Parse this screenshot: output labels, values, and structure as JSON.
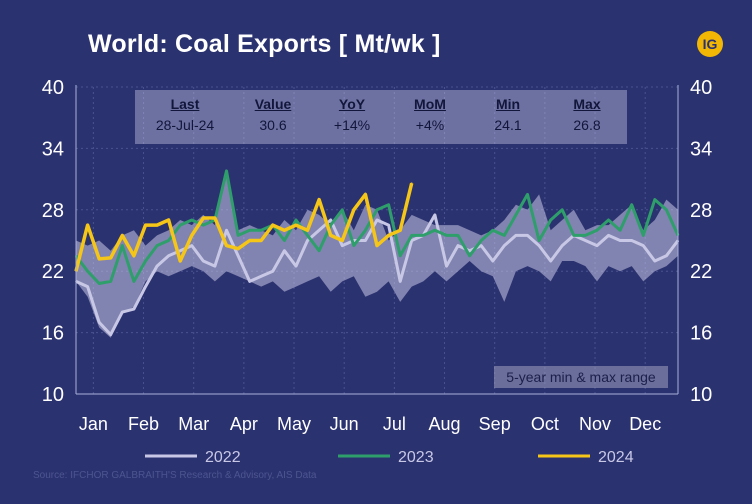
{
  "title": "World: Coal Exports [ Mt/wk ]",
  "logo_text": "IG",
  "stats": {
    "headers": [
      "Last",
      "Value",
      "YoY",
      "MoM",
      "Min",
      "Max"
    ],
    "values": [
      "28-Jul-24",
      "30.6",
      "+14%",
      "+4%",
      "24.1",
      "26.8"
    ]
  },
  "range_label": "5-year min & max range",
  "source": "Source: IFCHOR GALBRAITH'S Research & Advisory, AIS Data",
  "colors": {
    "background": "#2b3270",
    "band": "#c8c8e6",
    "s2022": "#c8c8e6",
    "s2023": "#2e9e6b",
    "s2024": "#f5c518",
    "logo": "#f2b705"
  },
  "chart_data": {
    "type": "line",
    "title": "World: Coal Exports [ Mt/wk ]",
    "ylabel": "",
    "xlabel": "",
    "ylim": [
      10,
      40
    ],
    "yticks": [
      10,
      16,
      22,
      28,
      34,
      40
    ],
    "x_tick_labels": [
      "Jan",
      "Feb",
      "Mar",
      "Apr",
      "May",
      "Jun",
      "Jul",
      "Aug",
      "Sep",
      "Oct",
      "Nov",
      "Dec"
    ],
    "x_unit": "week of year",
    "xlim": [
      1,
      53
    ],
    "legend_position": "bottom",
    "range_band": {
      "name": "5-year min & max range",
      "min": [
        21.0,
        19.5,
        16.5,
        15.5,
        18.0,
        18.5,
        21.0,
        22.0,
        21.5,
        22.0,
        22.5,
        22.0,
        21.0,
        22.0,
        21.5,
        21.0,
        20.5,
        21.0,
        20.0,
        20.5,
        21.0,
        21.5,
        20.0,
        21.0,
        21.5,
        19.5,
        20.0,
        21.0,
        19.0,
        20.5,
        21.0,
        22.0,
        21.0,
        22.0,
        23.0,
        22.0,
        21.5,
        19.0,
        22.0,
        22.5,
        22.0,
        21.0,
        23.0,
        23.0,
        22.5,
        21.0,
        22.5,
        22.0,
        22.5,
        21.0,
        22.0,
        22.5,
        23.5
      ],
      "max": [
        25.0,
        24.5,
        25.0,
        24.0,
        25.5,
        26.0,
        24.5,
        25.5,
        26.0,
        27.0,
        26.5,
        27.5,
        26.5,
        31.5,
        26.0,
        26.5,
        26.0,
        25.5,
        27.0,
        26.0,
        28.0,
        27.5,
        26.5,
        28.0,
        26.0,
        28.5,
        28.0,
        25.0,
        26.0,
        27.5,
        27.0,
        26.5,
        26.5,
        26.5,
        26.0,
        25.5,
        26.0,
        27.0,
        28.5,
        28.0,
        29.5,
        26.0,
        27.0,
        28.0,
        26.0,
        26.5,
        26.5,
        27.5,
        28.5,
        26.0,
        27.0,
        29.0,
        28.0
      ]
    },
    "series": [
      {
        "name": "2022",
        "values": [
          21.0,
          20.5,
          17.0,
          15.8,
          18.0,
          18.3,
          20.5,
          22.5,
          23.5,
          24.0,
          24.5,
          23.0,
          22.5,
          26.0,
          23.5,
          21.0,
          21.5,
          22.0,
          24.0,
          22.5,
          25.0,
          26.0,
          27.0,
          24.5,
          25.0,
          25.0,
          27.0,
          26.5,
          21.0,
          25.0,
          25.5,
          27.5,
          22.5,
          24.5,
          24.0,
          24.5,
          23.0,
          24.5,
          25.5,
          25.5,
          24.5,
          23.0,
          24.5,
          25.5,
          25.0,
          24.5,
          25.5,
          25.0,
          25.0,
          24.5,
          23.0,
          23.5,
          25.0
        ]
      },
      {
        "name": "2023",
        "values": [
          23.5,
          22.0,
          20.8,
          21.0,
          24.5,
          21.0,
          23.0,
          24.5,
          25.0,
          26.5,
          27.0,
          26.5,
          27.0,
          31.8,
          25.5,
          26.0,
          26.0,
          26.5,
          25.0,
          27.0,
          25.5,
          24.0,
          26.5,
          28.0,
          24.5,
          26.0,
          28.0,
          28.5,
          23.5,
          25.5,
          25.5,
          26.0,
          25.5,
          25.5,
          23.5,
          25.0,
          26.0,
          25.5,
          27.5,
          29.5,
          25.0,
          27.0,
          28.0,
          25.5,
          25.5,
          26.0,
          27.0,
          26.0,
          28.5,
          25.5,
          29.0,
          28.0,
          25.5
        ]
      },
      {
        "name": "2024",
        "values": [
          22.0,
          26.5,
          23.2,
          23.3,
          25.5,
          23.5,
          26.5,
          26.5,
          27.0,
          23.0,
          25.5,
          27.2,
          27.2,
          24.5,
          24.2,
          25.0,
          25.0,
          26.5,
          26.0,
          26.5,
          26.0,
          29.0,
          25.5,
          25.0,
          28.0,
          29.5,
          24.5,
          25.5,
          26.0,
          30.6
        ]
      }
    ]
  }
}
